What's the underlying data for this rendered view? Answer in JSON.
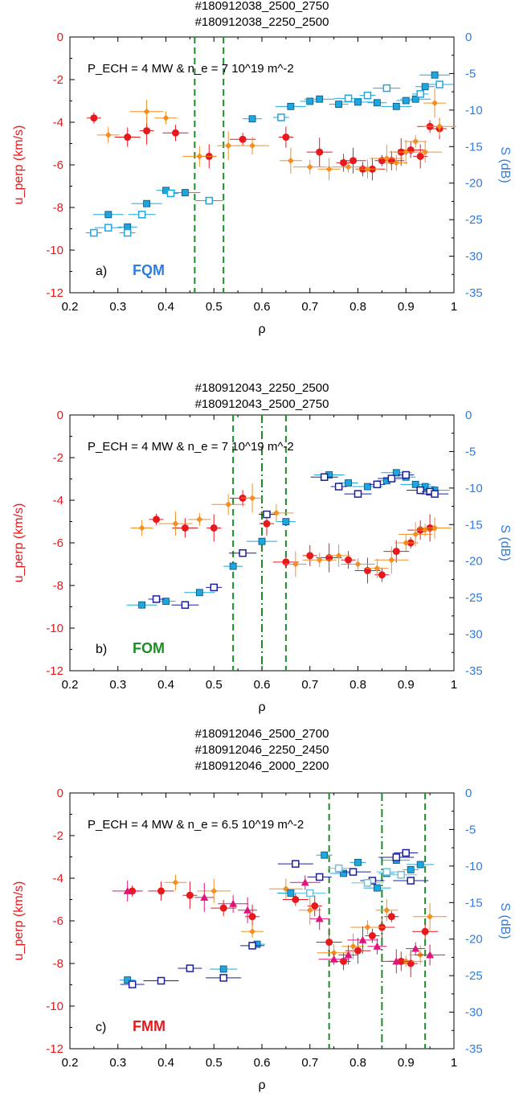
{
  "chart_data": [
    {
      "type": "scatter",
      "titles": [
        "#180912038_2500_2750",
        "#180912038_2250_2500"
      ],
      "annotation": "P_ECH = 4 MW & n_e = 7 10^19 m^-2",
      "panel_label": "a)",
      "mode_label": "FQM",
      "mode_color": "#2f7ce0",
      "xlabel": "ρ",
      "ylabel_left": "u_perp (km/s)",
      "ylabel_right": "S (dB)",
      "xlim": [
        0.2,
        1.0
      ],
      "ylim_left": [
        -12,
        0
      ],
      "ylim_right": [
        -35,
        0
      ],
      "x_ticks": [
        "0.2",
        "0.3",
        "0.4",
        "0.5",
        "0.6",
        "0.7",
        "0.8",
        "0.9",
        "1"
      ],
      "y_ticks_left": [
        "0",
        "-2",
        "-4",
        "-6",
        "-8",
        "-10",
        "-12"
      ],
      "y_ticks_right": [
        "0",
        "-5",
        "-10",
        "-15",
        "-20",
        "-25",
        "-30",
        "-35"
      ],
      "vlines": [
        {
          "x": 0.46,
          "style": "dash"
        },
        {
          "x": 0.52,
          "style": "dash"
        }
      ],
      "series": [
        {
          "axis": "left",
          "marker": "circle",
          "color": "#e8191d",
          "points": [
            [
              0.25,
              -3.8
            ],
            [
              0.32,
              -4.7
            ],
            [
              0.36,
              -4.4
            ],
            [
              0.42,
              -4.5
            ],
            [
              0.49,
              -5.6
            ],
            [
              0.56,
              -4.8
            ],
            [
              0.65,
              -4.7
            ],
            [
              0.72,
              -5.4
            ],
            [
              0.77,
              -5.9
            ],
            [
              0.79,
              -5.8
            ],
            [
              0.81,
              -6.2
            ],
            [
              0.83,
              -6.2
            ],
            [
              0.85,
              -5.8
            ],
            [
              0.87,
              -5.8
            ],
            [
              0.89,
              -5.4
            ],
            [
              0.91,
              -5.3
            ],
            [
              0.93,
              -5.6
            ],
            [
              0.95,
              -4.2
            ],
            [
              0.97,
              -4.3
            ]
          ]
        },
        {
          "axis": "left",
          "marker": "diamond",
          "color": "#f39023",
          "points": [
            [
              0.28,
              -4.6
            ],
            [
              0.36,
              -3.5
            ],
            [
              0.4,
              -3.8
            ],
            [
              0.47,
              -5.6
            ],
            [
              0.53,
              -5.1
            ],
            [
              0.58,
              -5.1
            ],
            [
              0.66,
              -5.8
            ],
            [
              0.7,
              -6.1
            ],
            [
              0.74,
              -6.2
            ],
            [
              0.78,
              -6.1
            ],
            [
              0.82,
              -6.2
            ],
            [
              0.86,
              -5.7
            ],
            [
              0.88,
              -5.9
            ],
            [
              0.9,
              -5.4
            ],
            [
              0.92,
              -4.9
            ],
            [
              0.94,
              -5.4
            ],
            [
              0.96,
              -3.1
            ],
            [
              0.97,
              -4.2
            ]
          ]
        },
        {
          "axis": "right",
          "marker": "square-filled",
          "color": "#1ea7df",
          "points": [
            [
              0.28,
              -24.3
            ],
            [
              0.32,
              -26.0
            ],
            [
              0.36,
              -22.8
            ],
            [
              0.4,
              -21.0
            ],
            [
              0.44,
              -21.3
            ],
            [
              0.58,
              -11.2
            ],
            [
              0.66,
              -9.5
            ],
            [
              0.7,
              -8.8
            ],
            [
              0.72,
              -8.5
            ],
            [
              0.76,
              -9.2
            ],
            [
              0.8,
              -8.9
            ],
            [
              0.84,
              -9.0
            ],
            [
              0.88,
              -9.5
            ],
            [
              0.9,
              -8.7
            ],
            [
              0.92,
              -8.5
            ],
            [
              0.94,
              -6.8
            ],
            [
              0.96,
              -5.2
            ]
          ]
        },
        {
          "axis": "right",
          "marker": "square-open",
          "color": "#1ea7df",
          "points": [
            [
              0.25,
              -26.8
            ],
            [
              0.28,
              -26.1
            ],
            [
              0.32,
              -26.8
            ],
            [
              0.35,
              -24.3
            ],
            [
              0.41,
              -21.4
            ],
            [
              0.49,
              -22.4
            ],
            [
              0.64,
              -11.0
            ],
            [
              0.78,
              -8.4
            ],
            [
              0.82,
              -8.0
            ],
            [
              0.86,
              -7.0
            ],
            [
              0.93,
              -7.8
            ],
            [
              0.97,
              -6.5
            ]
          ]
        }
      ]
    },
    {
      "type": "scatter",
      "titles": [
        "#180912043_2250_2500",
        "#180912043_2500_2750"
      ],
      "annotation": "P_ECH = 4 MW & n_e = 7 10^19 m^-2",
      "panel_label": "b)",
      "mode_label": "FOM",
      "mode_color": "#1c8c26",
      "xlabel": "ρ",
      "ylabel_left": "u_perp (km/s)",
      "ylabel_right": "S (dB)",
      "xlim": [
        0.2,
        1.0
      ],
      "ylim_left": [
        -12,
        0
      ],
      "ylim_right": [
        -35,
        0
      ],
      "x_ticks": [
        "0.2",
        "0.3",
        "0.4",
        "0.5",
        "0.6",
        "0.7",
        "0.8",
        "0.9",
        "1"
      ],
      "y_ticks_left": [
        "0",
        "-2",
        "-4",
        "-6",
        "-8",
        "-10",
        "-12"
      ],
      "y_ticks_right": [
        "0",
        "-5",
        "-10",
        "-15",
        "-20",
        "-25",
        "-30",
        "-35"
      ],
      "vlines": [
        {
          "x": 0.54,
          "style": "dash"
        },
        {
          "x": 0.6,
          "style": "dashdot"
        },
        {
          "x": 0.65,
          "style": "dash"
        }
      ],
      "series": [
        {
          "axis": "left",
          "marker": "circle",
          "color": "#e8191d",
          "points": [
            [
              0.38,
              -4.9
            ],
            [
              0.44,
              -5.3
            ],
            [
              0.5,
              -5.3
            ],
            [
              0.56,
              -3.9
            ],
            [
              0.61,
              -5.1
            ],
            [
              0.65,
              -6.9
            ],
            [
              0.7,
              -6.6
            ],
            [
              0.74,
              -6.7
            ],
            [
              0.78,
              -6.8
            ],
            [
              0.82,
              -7.3
            ],
            [
              0.85,
              -7.5
            ],
            [
              0.88,
              -6.4
            ],
            [
              0.91,
              -6.0
            ],
            [
              0.93,
              -5.4
            ],
            [
              0.95,
              -5.3
            ]
          ]
        },
        {
          "axis": "left",
          "marker": "diamond",
          "color": "#f39023",
          "points": [
            [
              0.35,
              -5.3
            ],
            [
              0.42,
              -5.1
            ],
            [
              0.47,
              -4.9
            ],
            [
              0.53,
              -4.2
            ],
            [
              0.58,
              -3.9
            ],
            [
              0.63,
              -4.6
            ],
            [
              0.67,
              -7.0
            ],
            [
              0.72,
              -6.8
            ],
            [
              0.76,
              -6.6
            ],
            [
              0.8,
              -7.0
            ],
            [
              0.84,
              -7.2
            ],
            [
              0.87,
              -6.8
            ],
            [
              0.9,
              -6.0
            ],
            [
              0.92,
              -5.6
            ],
            [
              0.94,
              -5.4
            ],
            [
              0.96,
              -5.3
            ]
          ]
        },
        {
          "axis": "right",
          "marker": "square-filled",
          "color": "#1ea7df",
          "points": [
            [
              0.35,
              -26.0
            ],
            [
              0.4,
              -25.5
            ],
            [
              0.47,
              -24.3
            ],
            [
              0.54,
              -20.7
            ],
            [
              0.6,
              -17.3
            ],
            [
              0.65,
              -14.6
            ],
            [
              0.74,
              -8.2
            ],
            [
              0.78,
              -9.3
            ],
            [
              0.82,
              -9.8
            ],
            [
              0.86,
              -9.0
            ],
            [
              0.88,
              -7.9
            ],
            [
              0.9,
              -8.5
            ],
            [
              0.92,
              -9.5
            ],
            [
              0.94,
              -9.8
            ],
            [
              0.96,
              -10.3
            ]
          ]
        },
        {
          "axis": "right",
          "marker": "square-open",
          "color": "#1a1fa0",
          "points": [
            [
              0.38,
              -25.2
            ],
            [
              0.44,
              -26.0
            ],
            [
              0.5,
              -23.6
            ],
            [
              0.56,
              -18.9
            ],
            [
              0.61,
              -13.6
            ],
            [
              0.73,
              -8.5
            ],
            [
              0.76,
              -9.8
            ],
            [
              0.8,
              -10.8
            ],
            [
              0.84,
              -9.5
            ],
            [
              0.87,
              -8.7
            ],
            [
              0.9,
              -8.2
            ],
            [
              0.93,
              -10.3
            ],
            [
              0.95,
              -10.5
            ],
            [
              0.96,
              -10.8
            ]
          ]
        }
      ]
    },
    {
      "type": "scatter",
      "titles": [
        "#180912046_2500_2700",
        "#180912046_2250_2450",
        "#180912046_2000_2200"
      ],
      "annotation": "P_ECH = 4 MW & n_e = 6.5 10^19 m^-2",
      "panel_label": "c)",
      "mode_label": "FMM",
      "mode_color": "#e8191d",
      "xlabel": "ρ",
      "ylabel_left": "u_perp (km/s)",
      "ylabel_right": "S (dB)",
      "xlim": [
        0.2,
        1.0
      ],
      "ylim_left": [
        -12,
        0
      ],
      "ylim_right": [
        -35,
        0
      ],
      "x_ticks": [
        "0.2",
        "0.3",
        "0.4",
        "0.5",
        "0.6",
        "0.7",
        "0.8",
        "0.9",
        "1"
      ],
      "y_ticks_left": [
        "0",
        "-2",
        "-4",
        "-6",
        "-8",
        "-10",
        "-12"
      ],
      "y_ticks_right": [
        "0",
        "-5",
        "-10",
        "-15",
        "-20",
        "-25",
        "-30",
        "-35"
      ],
      "vlines": [
        {
          "x": 0.74,
          "style": "dash"
        },
        {
          "x": 0.85,
          "style": "dashdot"
        },
        {
          "x": 0.94,
          "style": "dash"
        }
      ],
      "series": [
        {
          "axis": "left",
          "marker": "circle",
          "color": "#e8191d",
          "points": [
            [
              0.33,
              -4.6
            ],
            [
              0.39,
              -4.6
            ],
            [
              0.45,
              -4.8
            ],
            [
              0.52,
              -5.4
            ],
            [
              0.58,
              -5.8
            ],
            [
              0.67,
              -5.0
            ],
            [
              0.71,
              -5.3
            ],
            [
              0.74,
              -7.0
            ],
            [
              0.77,
              -7.9
            ],
            [
              0.8,
              -7.4
            ],
            [
              0.83,
              -6.7
            ],
            [
              0.85,
              -6.3
            ],
            [
              0.87,
              -5.8
            ],
            [
              0.89,
              -7.9
            ],
            [
              0.91,
              -8.0
            ],
            [
              0.94,
              -6.5
            ]
          ]
        },
        {
          "axis": "left",
          "marker": "diamond",
          "color": "#f39023",
          "points": [
            [
              0.42,
              -4.2
            ],
            [
              0.5,
              -4.6
            ],
            [
              0.58,
              -6.5
            ],
            [
              0.65,
              -4.5
            ],
            [
              0.7,
              -5.5
            ],
            [
              0.75,
              -7.5
            ],
            [
              0.79,
              -7.2
            ],
            [
              0.82,
              -6.3
            ],
            [
              0.86,
              -5.5
            ],
            [
              0.9,
              -7.9
            ],
            [
              0.93,
              -7.6
            ],
            [
              0.95,
              -5.8
            ]
          ]
        },
        {
          "axis": "left",
          "marker": "triangle",
          "color": "#e0157a",
          "points": [
            [
              0.32,
              -4.6
            ],
            [
              0.48,
              -4.9
            ],
            [
              0.54,
              -5.2
            ],
            [
              0.57,
              -5.5
            ],
            [
              0.69,
              -4.2
            ],
            [
              0.72,
              -5.9
            ],
            [
              0.75,
              -7.8
            ],
            [
              0.78,
              -7.6
            ],
            [
              0.81,
              -6.9
            ],
            [
              0.84,
              -7.2
            ],
            [
              0.88,
              -7.9
            ],
            [
              0.92,
              -7.3
            ],
            [
              0.95,
              -7.6
            ]
          ]
        },
        {
          "axis": "right",
          "marker": "square-filled",
          "color": "#1ea7df",
          "points": [
            [
              0.32,
              -25.6
            ],
            [
              0.52,
              -24.1
            ],
            [
              0.59,
              -20.7
            ],
            [
              0.66,
              -13.7
            ],
            [
              0.73,
              -8.5
            ],
            [
              0.77,
              -11.0
            ],
            [
              0.8,
              -9.5
            ],
            [
              0.84,
              -13.0
            ],
            [
              0.86,
              -11.0
            ],
            [
              0.88,
              -9.2
            ],
            [
              0.91,
              -10.5
            ],
            [
              0.93,
              -9.8
            ]
          ]
        },
        {
          "axis": "right",
          "marker": "square-open",
          "color": "#1a1fa0",
          "points": [
            [
              0.33,
              -26.2
            ],
            [
              0.39,
              -25.7
            ],
            [
              0.45,
              -24.0
            ],
            [
              0.52,
              -25.3
            ],
            [
              0.58,
              -20.9
            ],
            [
              0.67,
              -9.7
            ],
            [
              0.72,
              -11.5
            ],
            [
              0.79,
              -10.8
            ],
            [
              0.83,
              -12.0
            ],
            [
              0.88,
              -8.8
            ],
            [
              0.9,
              -8.2
            ],
            [
              0.91,
              -12.0
            ]
          ]
        },
        {
          "axis": "right",
          "marker": "square-open",
          "color": "#5fc5ea",
          "points": [
            [
              0.7,
              -13.7
            ],
            [
              0.76,
              -10.3
            ],
            [
              0.82,
              -12.3
            ],
            [
              0.86,
              -10.8
            ],
            [
              0.89,
              -11.2
            ]
          ]
        }
      ]
    }
  ]
}
